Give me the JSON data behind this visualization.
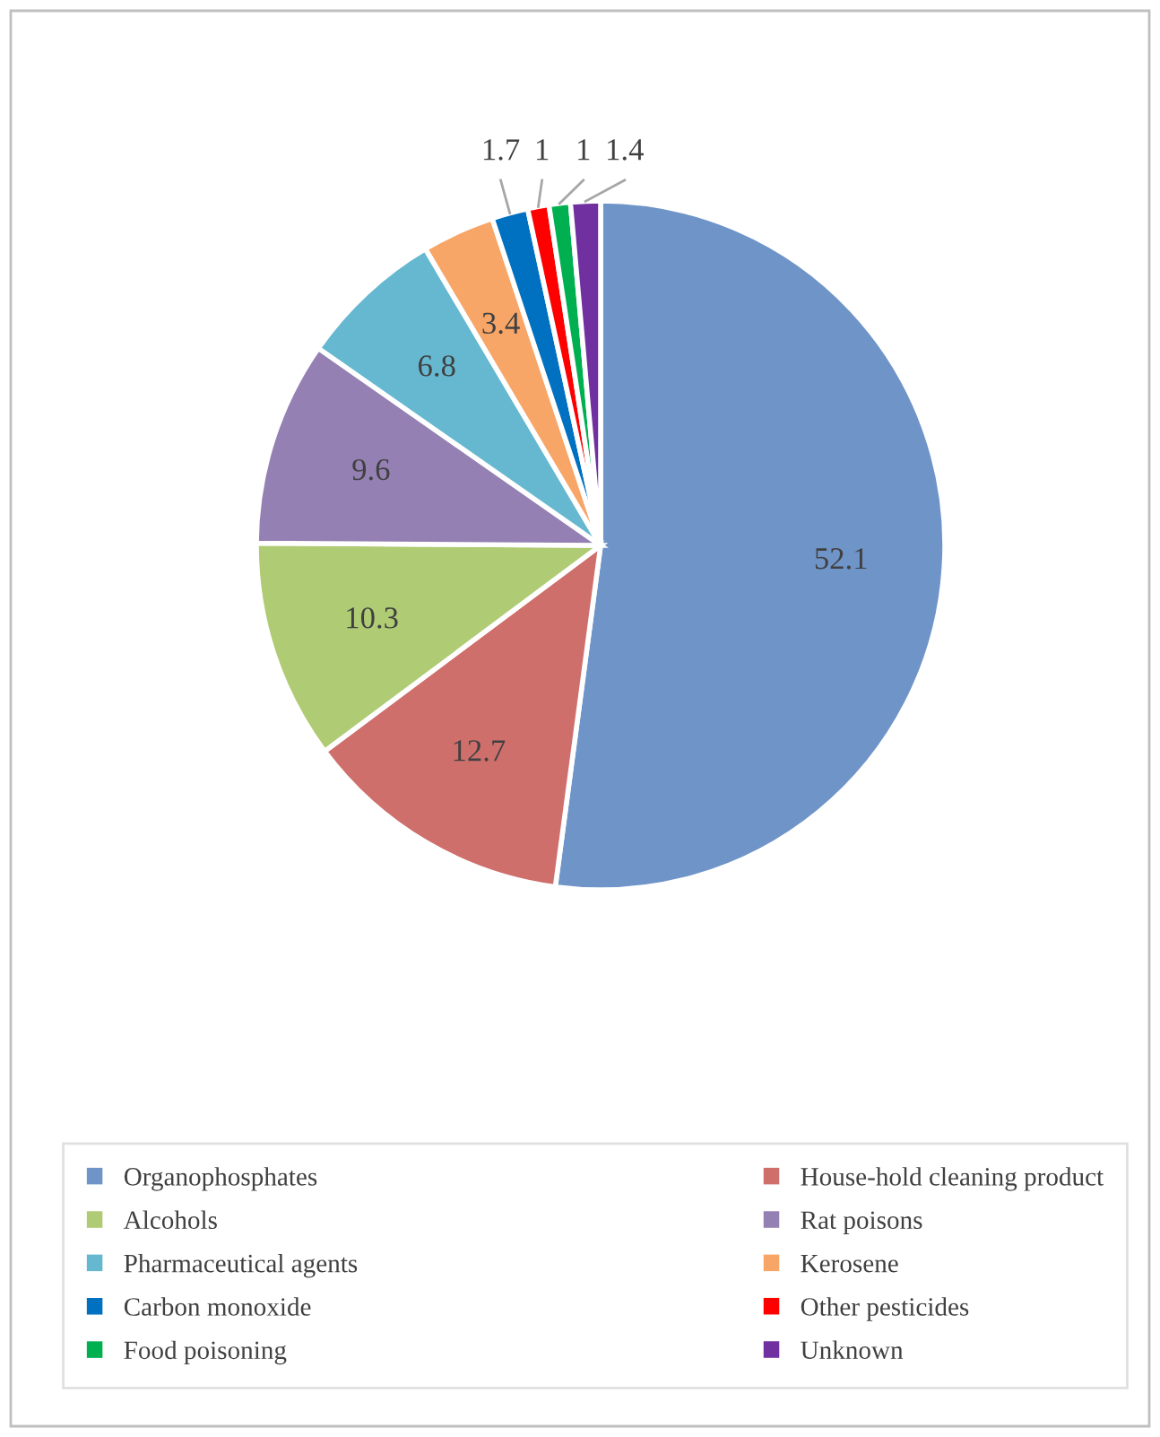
{
  "chart_data": {
    "type": "pie",
    "categories": [
      "Organophosphates",
      "House-hold cleaning product",
      "Alcohols",
      "Rat poisons",
      "Pharmaceutical agents",
      "Kerosene",
      "Carbon monoxide",
      "Other pesticides",
      "Food poisoning",
      "Unknown"
    ],
    "values": [
      52.1,
      12.7,
      10.3,
      9.6,
      6.8,
      3.4,
      1.7,
      1,
      1,
      1.4
    ],
    "colors": [
      "#6f94c8",
      "#cf6f6c",
      "#afcb74",
      "#9580b3",
      "#66b8d0",
      "#f7a668",
      "#0070c0",
      "#ff0000",
      "#00b050",
      "#7030a0"
    ],
    "data_labels": true,
    "legend": "bottom"
  }
}
